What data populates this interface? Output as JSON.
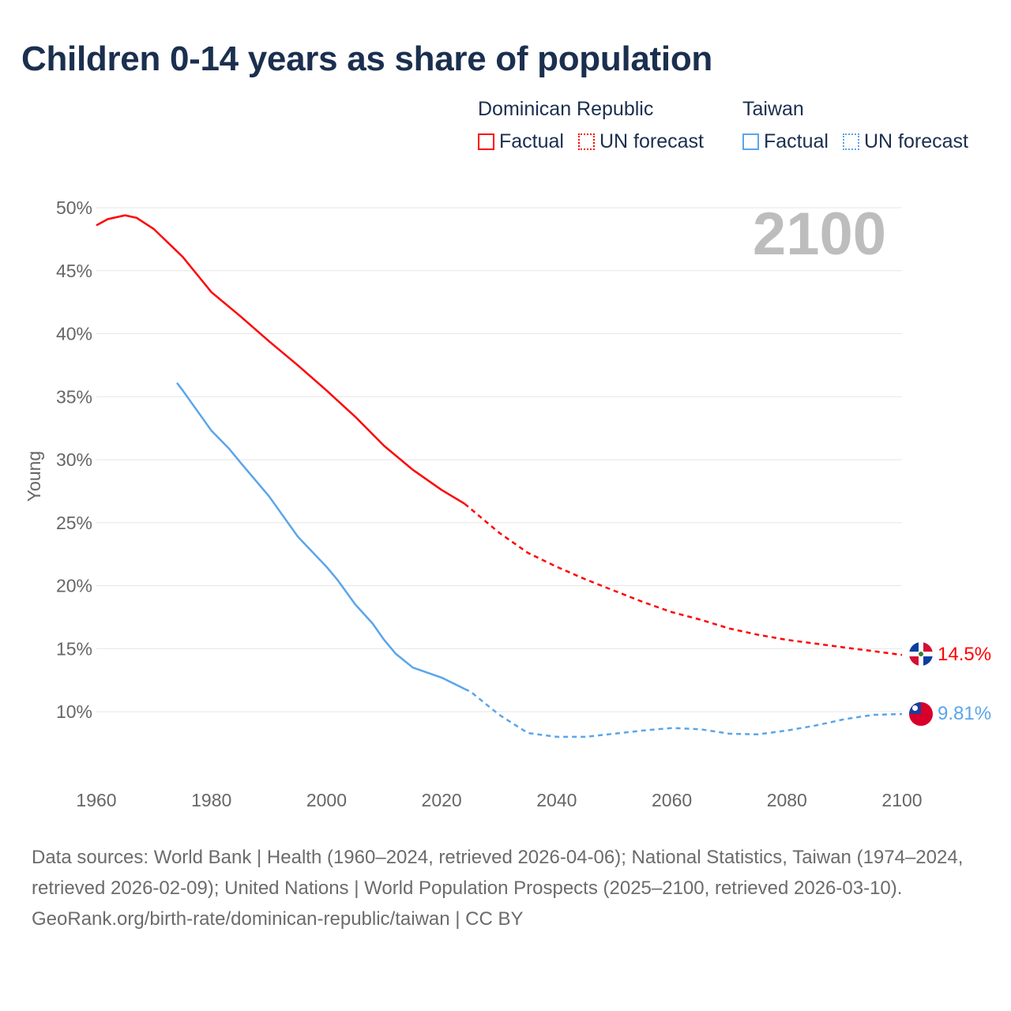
{
  "title": "Children 0-14 years as share of population",
  "legend": {
    "groups": [
      {
        "name": "Dominican Republic",
        "factual": "Factual",
        "forecast": "UN forecast",
        "color": "#ff0000"
      },
      {
        "name": "Taiwan",
        "factual": "Factual",
        "forecast": "UN forecast",
        "color": "#5aa5ea"
      }
    ]
  },
  "year_label": "2100",
  "sources": "Data sources: World Bank | Health (1960–2024, retrieved 2026-04-06); National Statistics, Taiwan (1974–2024, retrieved 2026-02-09); United Nations | World Population Prospects (2025–2100, retrieved 2026-03-10).",
  "attribution": "GeoRank.org/birth-rate/dominican-republic/taiwan | CC BY",
  "chart_data": {
    "type": "line",
    "title": "Children 0-14 years as share of population",
    "xlabel": "",
    "ylabel": "Young",
    "xlim": [
      1960,
      2100
    ],
    "ylim": [
      5,
      50
    ],
    "x_ticks": [
      "1960",
      "1980",
      "2000",
      "2020",
      "2040",
      "2060",
      "2080",
      "2100"
    ],
    "x_tick_values": [
      1960,
      1980,
      2000,
      2020,
      2040,
      2060,
      2080,
      2100
    ],
    "y_ticks": [
      "10%",
      "15%",
      "20%",
      "25%",
      "30%",
      "35%",
      "40%",
      "45%",
      "50%"
    ],
    "y_tick_values": [
      10,
      15,
      20,
      25,
      30,
      35,
      40,
      45,
      50
    ],
    "grid": true,
    "legend_position": "top-right",
    "series": [
      {
        "name": "Dominican Republic",
        "color": "#ff0000",
        "end_label": "14.5%",
        "factual": {
          "x": [
            1960,
            1962,
            1965,
            1967,
            1970,
            1975,
            1980,
            1985,
            1990,
            1995,
            2000,
            2005,
            2010,
            2015,
            2020,
            2024
          ],
          "y": [
            48.6,
            49.1,
            49.4,
            49.2,
            48.3,
            46.1,
            43.3,
            41.4,
            39.4,
            37.5,
            35.5,
            33.4,
            31.1,
            29.2,
            27.6,
            26.5
          ]
        },
        "forecast": {
          "x": [
            2024,
            2030,
            2035,
            2040,
            2045,
            2050,
            2055,
            2060,
            2065,
            2070,
            2075,
            2080,
            2085,
            2090,
            2095,
            2100
          ],
          "y": [
            26.5,
            24.2,
            22.6,
            21.5,
            20.5,
            19.6,
            18.7,
            17.9,
            17.3,
            16.6,
            16.1,
            15.7,
            15.4,
            15.1,
            14.8,
            14.5
          ]
        }
      },
      {
        "name": "Taiwan",
        "color": "#5aa5ea",
        "end_label": "9.81%",
        "factual": {
          "x": [
            1974,
            1975,
            1980,
            1983,
            1985,
            1990,
            1995,
            2000,
            2002,
            2005,
            2008,
            2010,
            2012,
            2015,
            2020,
            2024
          ],
          "y": [
            36.1,
            35.5,
            32.3,
            30.9,
            29.8,
            27.1,
            23.9,
            21.5,
            20.4,
            18.5,
            17.0,
            15.7,
            14.6,
            13.5,
            12.7,
            11.8
          ]
        },
        "forecast": {
          "x": [
            2024,
            2025,
            2030,
            2035,
            2040,
            2045,
            2050,
            2055,
            2060,
            2065,
            2070,
            2075,
            2080,
            2085,
            2090,
            2095,
            2100
          ],
          "y": [
            11.8,
            11.6,
            9.75,
            8.3,
            8.0,
            8.0,
            8.25,
            8.5,
            8.7,
            8.6,
            8.25,
            8.2,
            8.5,
            8.9,
            9.4,
            9.75,
            9.81
          ]
        }
      }
    ]
  }
}
